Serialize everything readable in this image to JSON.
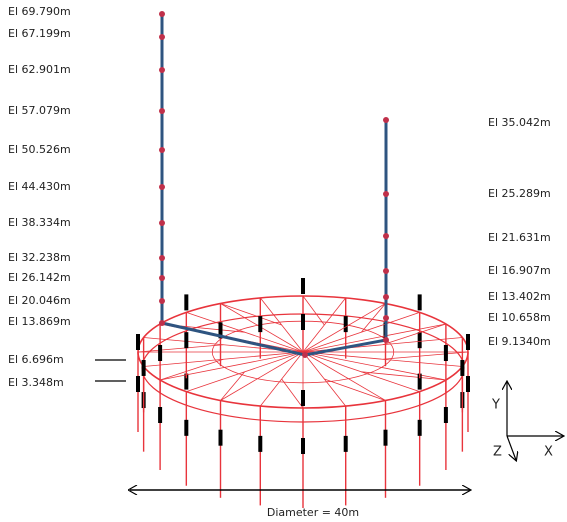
{
  "left_labels": [
    "El 69.790m",
    "El 67.199m",
    "El 62.901m",
    "El 57.079m",
    "El 50.526m",
    "El 44.430m",
    "El 38.334m",
    "El 32.238m",
    "El 26.142m",
    "El 20.046m",
    "El 13.869m",
    "El 6.696m",
    "El 3.348m"
  ],
  "right_labels": [
    "El 35.042m",
    "El 25.289m",
    "El 21.631m",
    "El 16.907m",
    "El 13.402m",
    "El 10.658m",
    "El 9.1340m"
  ],
  "dimension": "Diameter = 40m",
  "axes": {
    "y": "Y",
    "z": "Z",
    "x": "X"
  }
}
